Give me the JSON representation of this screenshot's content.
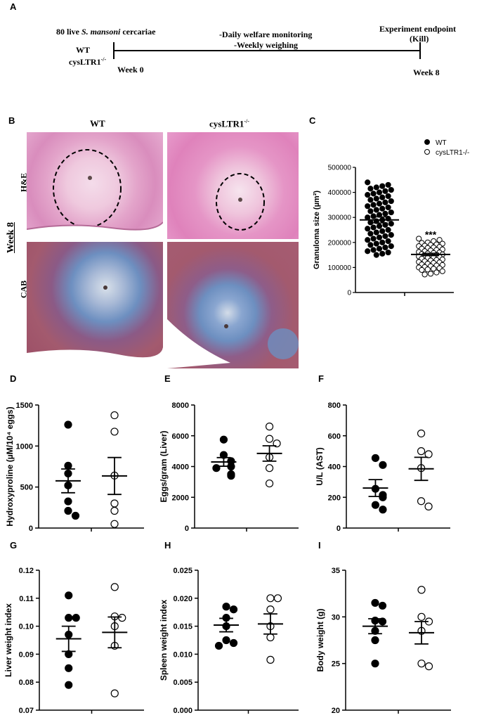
{
  "panels": {
    "A": "A",
    "B": "B",
    "C": "C",
    "D": "D",
    "E": "E",
    "F": "F",
    "G": "G",
    "H": "H",
    "I": "I"
  },
  "timeline": {
    "infection_prefix": "80 live ",
    "infection_species": "S. mansoni",
    "infection_suffix": " cercariae",
    "groups_line1": "WT",
    "groups_line2_base": "cysLTR1",
    "groups_line2_sup": "-/-",
    "monitor_line1": "-Daily welfare monitoring",
    "monitor_line2": "-Weekly weighing",
    "endpoint_line1": "Experiment endpoint",
    "endpoint_line2": "(Kill)",
    "week0": "Week 0",
    "week8": "Week 8"
  },
  "histology": {
    "col_wt": "WT",
    "col_ko_base": "cysLTR1",
    "col_ko_sup": "-/-",
    "row_he": "H&E",
    "row_cab": "CAB",
    "week_label": "Week 8"
  },
  "colors": {
    "he_pink": "#e6a6cf",
    "cab_red": "#a35a6e",
    "cab_blue": "#6d8fc0",
    "filled": "#000000",
    "open": "#ffffff"
  },
  "chart_data": [
    {
      "id": "C",
      "type": "scatter",
      "ylabel": "Granuloma size (µm²)",
      "ylim": [
        0,
        500000
      ],
      "yticks": [
        "0",
        "100000",
        "200000",
        "300000",
        "400000",
        "500000"
      ],
      "legend": [
        {
          "name": "WT",
          "marker": "filled"
        },
        {
          "name": "cysLTR1-/-",
          "marker": "open"
        }
      ],
      "legend_position": "top-right",
      "significance": "***",
      "groups": [
        {
          "name": "WT",
          "marker": "filled",
          "mean": 290000,
          "sem": 12000,
          "values": [
            440000,
            430000,
            425000,
            420000,
            415000,
            410000,
            405000,
            400000,
            395000,
            390000,
            385000,
            380000,
            375000,
            370000,
            365000,
            360000,
            355000,
            350000,
            345000,
            340000,
            335000,
            330000,
            325000,
            320000,
            315000,
            310000,
            305000,
            300000,
            295000,
            290000,
            285000,
            280000,
            275000,
            270000,
            265000,
            260000,
            255000,
            250000,
            245000,
            240000,
            235000,
            230000,
            225000,
            220000,
            215000,
            210000,
            205000,
            200000,
            195000,
            190000,
            185000,
            180000,
            175000,
            170000,
            165000,
            160000,
            155000,
            150000
          ]
        },
        {
          "name": "cysLTR1-/-",
          "marker": "open",
          "mean": 152000,
          "sem": 5000,
          "values": [
            215000,
            210000,
            205000,
            200000,
            198000,
            195000,
            192000,
            190000,
            187000,
            185000,
            182000,
            180000,
            178000,
            175000,
            172000,
            170000,
            168000,
            165000,
            162000,
            160000,
            158000,
            156000,
            154000,
            152000,
            150000,
            148000,
            146000,
            144000,
            142000,
            140000,
            138000,
            135000,
            132000,
            130000,
            128000,
            125000,
            122000,
            120000,
            118000,
            115000,
            112000,
            110000,
            108000,
            105000,
            102000,
            100000,
            97000,
            95000,
            92000,
            90000,
            85000,
            80000,
            75000,
            72000
          ]
        }
      ]
    },
    {
      "id": "D",
      "type": "scatter",
      "ylabel": "Hydroxyproline (µM/10⁴ eggs)",
      "ylim": [
        0,
        1500
      ],
      "yticks": [
        "0",
        "500",
        "1000",
        "1500"
      ],
      "groups": [
        {
          "name": "WT",
          "marker": "filled",
          "mean": 575,
          "sem": 145,
          "values": [
            1260,
            760,
            665,
            520,
            325,
            210,
            150
          ]
        },
        {
          "name": "cysLTR1-/-",
          "marker": "open",
          "mean": 635,
          "sem": 225,
          "values": [
            1375,
            1175,
            640,
            300,
            210,
            50
          ]
        }
      ]
    },
    {
      "id": "E",
      "type": "scatter",
      "ylabel": "Eggs/gram (Liver)",
      "ylim": [
        0,
        8000
      ],
      "yticks": [
        "0",
        "2000",
        "4000",
        "6000",
        "8000"
      ],
      "groups": [
        {
          "name": "WT",
          "marker": "filled",
          "mean": 4300,
          "sem": 280,
          "values": [
            5750,
            4750,
            4350,
            4000,
            3900,
            3500,
            3400
          ]
        },
        {
          "name": "cysLTR1-/-",
          "marker": "open",
          "mean": 4850,
          "sem": 500,
          "values": [
            6600,
            5800,
            5500,
            4600,
            3900,
            2900
          ]
        }
      ]
    },
    {
      "id": "F",
      "type": "scatter",
      "ylabel": "U/L (AST)",
      "ylim": [
        0,
        800
      ],
      "yticks": [
        "0",
        "200",
        "400",
        "600",
        "800"
      ],
      "groups": [
        {
          "name": "WT",
          "marker": "filled",
          "mean": 260,
          "sem": 55,
          "values": [
            455,
            410,
            255,
            215,
            200,
            150,
            120
          ]
        },
        {
          "name": "cysLTR1-/-",
          "marker": "open",
          "mean": 385,
          "sem": 75,
          "values": [
            615,
            500,
            480,
            390,
            175,
            140
          ]
        }
      ]
    },
    {
      "id": "G",
      "type": "scatter",
      "ylabel": "Liver weight index",
      "ylim": [
        0.07,
        0.12
      ],
      "yticks": [
        "0.07",
        "0.08",
        "0.09",
        "0.10",
        "0.11",
        "0.12"
      ],
      "groups": [
        {
          "name": "WT",
          "marker": "filled",
          "mean": 0.0955,
          "sem": 0.0045,
          "values": [
            0.111,
            0.103,
            0.103,
            0.097,
            0.09,
            0.085,
            0.079
          ]
        },
        {
          "name": "cysLTR1-/-",
          "marker": "open",
          "mean": 0.0978,
          "sem": 0.0055,
          "values": [
            0.114,
            0.1035,
            0.103,
            0.1,
            0.093,
            0.076
          ]
        }
      ]
    },
    {
      "id": "H",
      "type": "scatter",
      "ylabel": "Spleen weight index",
      "ylim": [
        0,
        0.025
      ],
      "yticks": [
        "0.000",
        "0.005",
        "0.010",
        "0.015",
        "0.020",
        "0.025"
      ],
      "groups": [
        {
          "name": "WT",
          "marker": "filled",
          "mean": 0.0152,
          "sem": 0.0012,
          "values": [
            0.0185,
            0.018,
            0.0165,
            0.015,
            0.0125,
            0.012,
            0.0115
          ]
        },
        {
          "name": "cysLTR1-/-",
          "marker": "open",
          "mean": 0.0154,
          "sem": 0.0018,
          "values": [
            0.02,
            0.02,
            0.018,
            0.015,
            0.013,
            0.009
          ]
        }
      ]
    },
    {
      "id": "I",
      "type": "scatter",
      "ylabel": "Body weight (g)",
      "ylim": [
        20,
        35
      ],
      "yticks": [
        "20",
        "25",
        "30",
        "35"
      ],
      "groups": [
        {
          "name": "WT",
          "marker": "filled",
          "mean": 29.0,
          "sem": 0.8,
          "values": [
            31.5,
            31.2,
            29.6,
            29.5,
            28.5,
            27.5,
            25.0
          ]
        },
        {
          "name": "cysLTR1-/-",
          "marker": "open",
          "mean": 28.3,
          "sem": 1.2,
          "values": [
            32.9,
            30.0,
            29.5,
            28.5,
            25.0,
            24.7
          ]
        }
      ]
    }
  ]
}
